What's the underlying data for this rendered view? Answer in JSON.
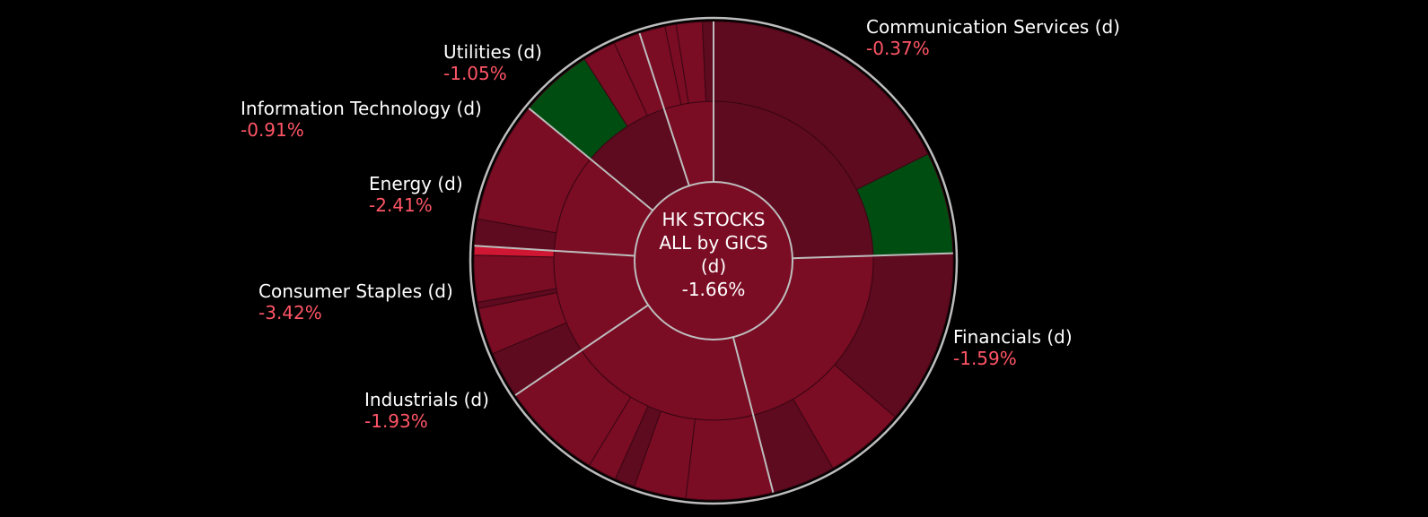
{
  "chart_data": {
    "type": "sunburst",
    "title": "HK STOCKS ALL by GICS",
    "center": {
      "line1": "HK STOCKS",
      "line2": "ALL by GICS",
      "line3": "(d)",
      "value": "-1.66%"
    },
    "sectors": [
      {
        "name": "Communication Services (d)",
        "change": "-0.37%",
        "share": 24.5
      },
      {
        "name": "Financials (d)",
        "change": "-1.59%",
        "share": 21.5
      },
      {
        "name": "Industrials (d)",
        "change": "-1.93%",
        "share": 19.5
      },
      {
        "name": "Consumer Staples (d)",
        "change": "-3.42%",
        "share": 10.5
      },
      {
        "name": "Energy (d)",
        "change": "-2.41%",
        "share": 10.0
      },
      {
        "name": "Information Technology (d)",
        "change": "-0.91%",
        "share": 9.0
      },
      {
        "name": "Utilities (d)",
        "change": "-1.05%",
        "share": 5.0
      }
    ],
    "colors": {
      "background": "#000000",
      "negative_dark": "#5e0a1f",
      "negative_mid": "#7a0c24",
      "negative_bright": "#cf1733",
      "positive": "#004d12",
      "separator": "#bdbdbd",
      "label_text": "#ffffff",
      "value_text": "#ff5566"
    }
  }
}
